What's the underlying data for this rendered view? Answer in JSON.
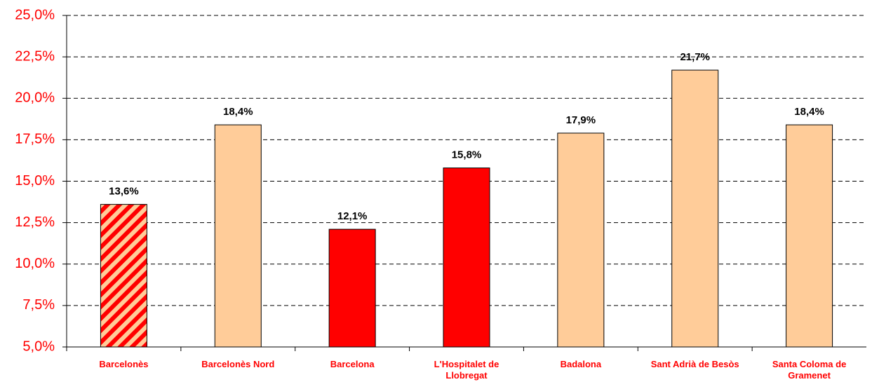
{
  "chart_data": {
    "type": "bar",
    "categories": [
      "Barcelonès",
      "Barcelonès Nord",
      "Barcelona",
      "L'Hospitalet de Llobregat",
      "Badalona",
      "Sant Adrià de Besòs",
      "Santa Coloma de Gramenet"
    ],
    "values": [
      13.6,
      18.4,
      12.1,
      15.8,
      17.9,
      21.7,
      18.4
    ],
    "value_labels": [
      "13,6%",
      "18,4%",
      "12,1%",
      "15,8%",
      "17,9%",
      "21,7%",
      "18,4%"
    ],
    "colors": [
      "#ff0000",
      "#ffcc99",
      "#ff0000",
      "#ff0000",
      "#ffcc99",
      "#ffcc99",
      "#ffcc99"
    ],
    "hatch": [
      true,
      false,
      false,
      false,
      false,
      false,
      false
    ],
    "hatch_color": "#ffcc99",
    "ylim": [
      5,
      25
    ],
    "yticks": [
      {
        "value": 5,
        "label": "5,0%"
      },
      {
        "value": 7.5,
        "label": "7,5%"
      },
      {
        "value": 10,
        "label": "10,0%"
      },
      {
        "value": 12.5,
        "label": "12,5%"
      },
      {
        "value": 15,
        "label": "15,0%"
      },
      {
        "value": 17.5,
        "label": "17,5%"
      },
      {
        "value": 20,
        "label": "20,0%"
      },
      {
        "value": 22.5,
        "label": "22,5%"
      },
      {
        "value": 25,
        "label": "25,0%"
      }
    ],
    "grid": true
  }
}
